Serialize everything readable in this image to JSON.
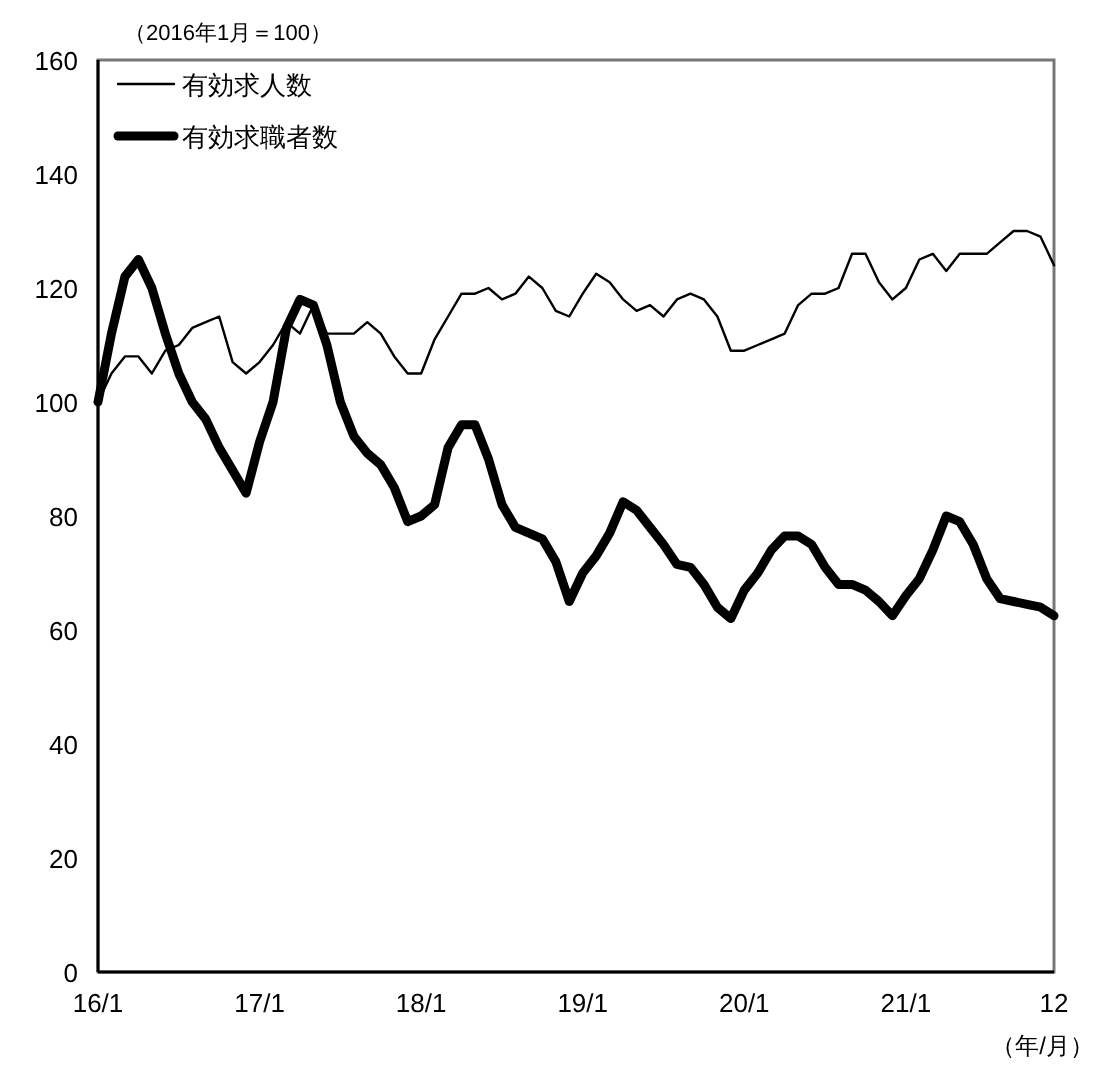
{
  "chart_data": {
    "type": "line",
    "subtitle": "（2016年1月＝100）",
    "xlabel": "（年/月）",
    "categories": [
      "16/1",
      null,
      null,
      null,
      null,
      null,
      null,
      null,
      null,
      null,
      null,
      null,
      "17/1",
      null,
      null,
      null,
      null,
      null,
      null,
      null,
      null,
      null,
      null,
      null,
      "18/1",
      null,
      null,
      null,
      null,
      null,
      null,
      null,
      null,
      null,
      null,
      null,
      "19/1",
      null,
      null,
      null,
      null,
      null,
      null,
      null,
      null,
      null,
      null,
      null,
      "20/1",
      null,
      null,
      null,
      null,
      null,
      null,
      null,
      null,
      null,
      null,
      null,
      "21/1",
      null,
      null,
      null,
      null,
      null,
      null,
      null,
      null,
      null,
      null,
      "12"
    ],
    "series": [
      {
        "name": "有効求人数",
        "color": "#000000",
        "values": [
          100,
          105,
          108,
          108,
          105,
          109,
          110,
          113,
          114,
          115,
          107,
          105,
          107,
          110,
          114,
          112,
          117,
          112,
          112,
          112,
          114,
          112,
          108,
          105,
          105,
          111,
          115,
          119,
          119,
          120,
          118,
          119,
          122,
          120,
          116,
          115,
          119,
          122.5,
          121,
          118,
          116,
          117,
          115,
          118,
          119,
          118,
          115,
          109,
          109,
          110,
          111,
          112,
          117,
          119,
          119,
          120,
          126,
          126,
          121,
          118,
          120,
          125,
          126,
          123,
          126,
          126,
          126,
          128,
          130,
          130,
          129,
          124
        ]
      },
      {
        "name": "有効求職者数",
        "color": "#000000",
        "values": [
          100,
          112,
          122,
          125,
          120,
          112,
          105,
          100,
          97,
          92,
          88,
          84,
          93,
          100,
          113,
          118,
          117,
          110,
          100,
          94,
          91,
          89,
          85,
          79,
          80,
          82,
          92,
          96,
          96,
          90,
          82,
          78,
          77,
          76,
          72,
          65,
          70,
          73,
          77,
          82.5,
          81,
          78,
          75,
          71.5,
          71,
          68,
          64,
          62,
          67,
          70,
          74,
          76.5,
          76.5,
          75,
          71,
          68,
          68,
          67,
          65,
          62.5,
          66,
          69,
          74,
          80,
          79,
          75,
          69,
          65.5,
          65,
          64.5,
          64,
          62.5
        ]
      }
    ],
    "ylim": [
      0,
      160
    ],
    "yticks": [
      0,
      20,
      40,
      60,
      80,
      100,
      120,
      140,
      160
    ],
    "legend": "top left",
    "grid": false
  }
}
